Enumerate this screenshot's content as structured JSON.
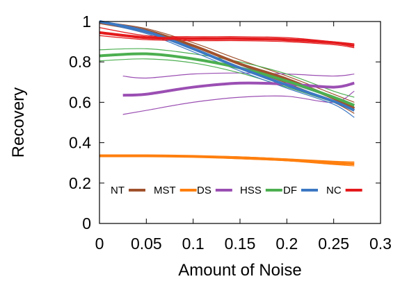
{
  "chart_data": {
    "type": "line",
    "xlabel": "Amount of Noise",
    "ylabel": "Recovery",
    "xlim": [
      0,
      0.3
    ],
    "ylim": [
      0,
      1
    ],
    "xticks": [
      "0",
      "0.05",
      "0.1",
      "0.15",
      "0.2",
      "0.25",
      "0.3"
    ],
    "yticks": [
      "0",
      "0.2",
      "0.4",
      "0.6",
      "0.8",
      "1"
    ],
    "grid": false,
    "legend_position": "bottom-inside",
    "series": [
      {
        "name": "NT",
        "color": "#a0522d",
        "x": [
          0,
          0.05,
          0.1,
          0.15,
          0.2,
          0.25,
          0.272
        ],
        "values": [
          0.995,
          0.955,
          0.88,
          0.79,
          0.715,
          0.62,
          0.57
        ],
        "band_upper": [
          1.0,
          0.965,
          0.895,
          0.81,
          0.73,
          0.64,
          0.6
        ],
        "band_lower": [
          0.99,
          0.945,
          0.865,
          0.775,
          0.695,
          0.6,
          0.545
        ]
      },
      {
        "name": "MST",
        "color": "#ff7f0e",
        "x": [
          0,
          0.05,
          0.1,
          0.15,
          0.2,
          0.25,
          0.272
        ],
        "values": [
          0.335,
          0.335,
          0.332,
          0.325,
          0.315,
          0.3,
          0.295
        ],
        "band_upper": [
          0.338,
          0.338,
          0.335,
          0.33,
          0.32,
          0.308,
          0.305
        ],
        "band_lower": [
          0.332,
          0.332,
          0.329,
          0.32,
          0.31,
          0.292,
          0.285
        ]
      },
      {
        "name": "DS",
        "color": "#9b4fb3",
        "x": [
          0.025,
          0.05,
          0.1,
          0.15,
          0.2,
          0.25,
          0.272
        ],
        "values": [
          0.635,
          0.64,
          0.675,
          0.695,
          0.69,
          0.675,
          0.695
        ],
        "band_upper": [
          0.73,
          0.72,
          0.74,
          0.745,
          0.74,
          0.73,
          0.74
        ],
        "band_lower": [
          0.54,
          0.56,
          0.6,
          0.625,
          0.63,
          0.6,
          0.655
        ]
      },
      {
        "name": "HSS",
        "color": "#4caf50",
        "x": [
          0,
          0.05,
          0.1,
          0.15,
          0.2,
          0.25,
          0.272
        ],
        "values": [
          0.83,
          0.84,
          0.815,
          0.77,
          0.705,
          0.625,
          0.585
        ],
        "band_upper": [
          0.86,
          0.865,
          0.84,
          0.8,
          0.74,
          0.655,
          0.625
        ],
        "band_lower": [
          0.805,
          0.815,
          0.795,
          0.745,
          0.675,
          0.6,
          0.57
        ]
      },
      {
        "name": "DF",
        "color": "#3b78c3",
        "x": [
          0,
          0.05,
          0.1,
          0.15,
          0.2,
          0.25,
          0.272
        ],
        "values": [
          1.0,
          0.95,
          0.865,
          0.77,
          0.685,
          0.605,
          0.56
        ],
        "band_upper": [
          1.0,
          0.96,
          0.88,
          0.785,
          0.7,
          0.62,
          0.575
        ],
        "band_lower": [
          0.995,
          0.94,
          0.85,
          0.755,
          0.67,
          0.59,
          0.525
        ]
      },
      {
        "name": "NC",
        "color": "#e41a1c",
        "x": [
          0,
          0.05,
          0.1,
          0.15,
          0.2,
          0.25,
          0.272
        ],
        "values": [
          0.945,
          0.92,
          0.915,
          0.915,
          0.91,
          0.895,
          0.88
        ],
        "band_upper": [
          0.97,
          0.93,
          0.925,
          0.925,
          0.92,
          0.9,
          0.89
        ],
        "band_lower": [
          0.93,
          0.91,
          0.905,
          0.905,
          0.9,
          0.885,
          0.87
        ]
      }
    ]
  }
}
